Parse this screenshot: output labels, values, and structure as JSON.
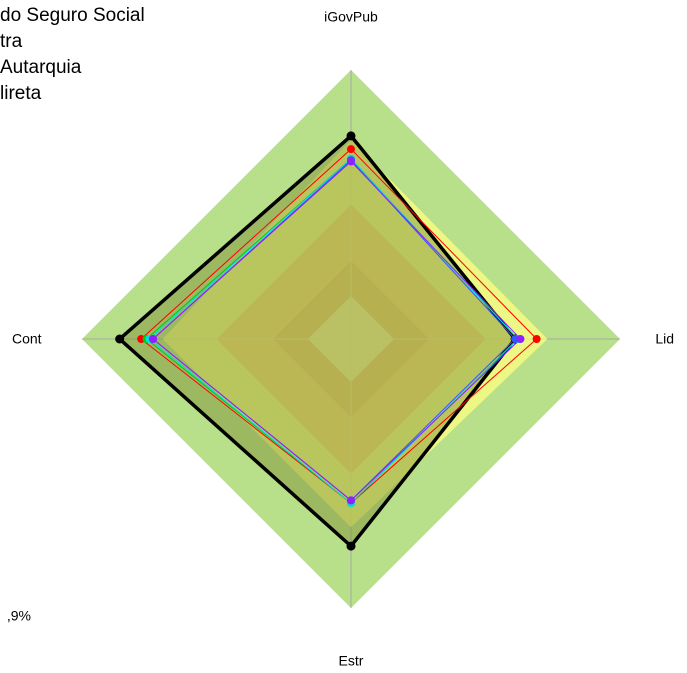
{
  "chart_data": {
    "type": "radar",
    "axes": [
      "iGovPub",
      "Lid",
      "Estr",
      "Cont"
    ],
    "rlim": [
      0,
      100
    ],
    "bands": [
      {
        "value": 100,
        "color": "#b8e08a"
      },
      {
        "value": 50,
        "color": "#c47a50"
      },
      {
        "value": 29,
        "color": "#a8432c"
      },
      {
        "value": 16,
        "color": "#c0c0c0"
      }
    ],
    "series": [
      {
        "color": "#ffff80",
        "fill": true,
        "values": [
          74,
          73,
          70,
          70
        ]
      },
      {
        "color": "#000000",
        "fill": true,
        "values": [
          75.5,
          61,
          77,
          86
        ]
      },
      {
        "color": "#ff0000",
        "values": [
          70.6,
          69,
          61,
          78
        ]
      },
      {
        "color": "#00cc00",
        "values": [
          67,
          62,
          61,
          76
        ]
      },
      {
        "color": "#00e0e0",
        "values": [
          67,
          62,
          61,
          75
        ]
      },
      {
        "color": "#3355ff",
        "values": [
          66.5,
          61,
          60,
          73.6
        ]
      },
      {
        "color": "#9020ff",
        "values": [
          66,
          63,
          60,
          73.6
        ]
      }
    ],
    "legend": [
      "do Seguro Social",
      "tra",
      "Autarquia",
      "lireta"
    ],
    "note": ",9%"
  }
}
